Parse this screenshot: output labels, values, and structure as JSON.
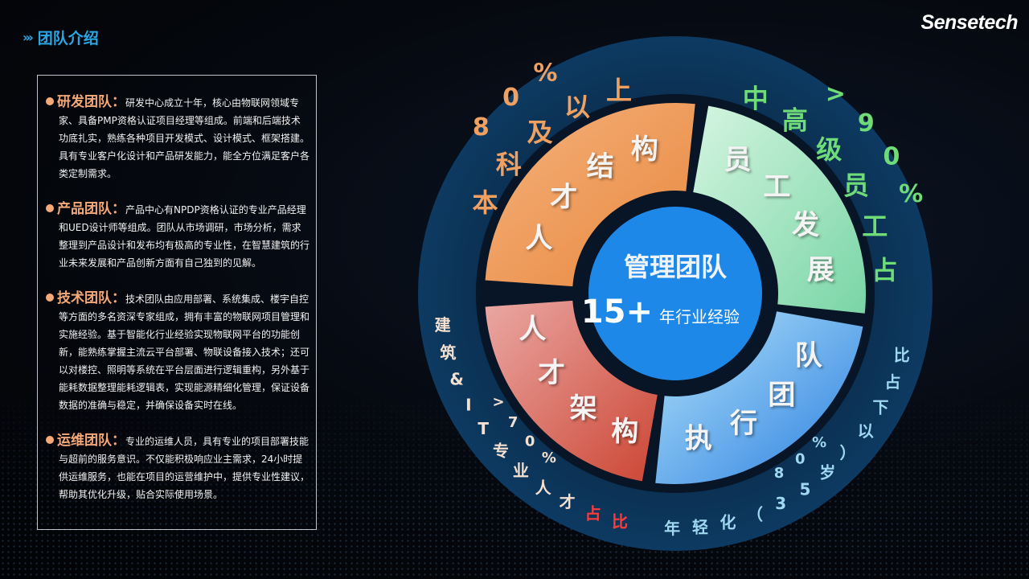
{
  "header": {
    "title": "团队介绍",
    "icon": "double-chevron-right-icon"
  },
  "logo": "Sensetech",
  "teams": [
    {
      "name": "研发团队",
      "sep": "：",
      "desc": "研发中心成立十年，核心由物联网领域专家、具备PMP资格认证项目经理等组成。前端和后端技术功底扎实，熟练各种项目开发模式、设计模式、框架搭建。具有专业客户化设计和产品研发能力，能全方位满足客户各类定制需求。"
    },
    {
      "name": "产品团队",
      "sep": "：",
      "desc": "产品中心有NPDP资格认证的专业产品经理和UED设计师等组成。团队从市场调研，市场分析，需求整理到产品设计和发布均有极高的专业性，在智慧建筑的行业未来发展和产品创新方面有自己独到的见解。"
    },
    {
      "name": "技术团队",
      "sep": "：",
      "desc": "技术团队由应用部署、系统集成、楼宇自控等方面的多名资深专家组成，拥有丰富的物联网项目管理和实施经验。基于智能化行业经验实现物联网平台的功能创新，能熟练掌握主流云平台部署、物联设备接入技术；还可以对楼控、照明等系统在平台层面进行逻辑重构，另外基于能耗数据整理能耗逻辑表，实现能源精细化管理，保证设备数据的准确与稳定，并确保设备实时在线。"
    },
    {
      "name": "运维团队",
      "sep": "：",
      "desc": "专业的运维人员，具有专业的项目部署技能与超前的服务意识。不仅能积极响应业主需求，24小时提供运维服务，也能在项目的运营维护中，提供专业性建议，帮助其优化升级，贴合实际使用场景。"
    }
  ],
  "center": {
    "title": "管理团队",
    "number": "15+",
    "suffix": "年行业经验",
    "color": "#1e88e8"
  },
  "segments": [
    {
      "label": "人才结构",
      "outer": "本科及以上",
      "percent": "80%",
      "colors": [
        "#f4b27c",
        "#e9873e"
      ],
      "text_color": "#f0a060"
    },
    {
      "label": "员工发展",
      "outer": "中高级员工占",
      "percent": ">90%",
      "colors": [
        "#d4f5e0",
        "#79d5a6"
      ],
      "text_color": "#6fdc78"
    },
    {
      "label": "执行团队",
      "outer": "年轻化（35岁）以下占比",
      "percent": "80%",
      "colors": [
        "#b2e2fa",
        "#2a7fe0"
      ],
      "text_color": "#9fd8f0"
    },
    {
      "label": "人才架构",
      "outer": "建筑&IT专业人才",
      "outer_accent": "占比",
      "percent": ">70%",
      "colors": [
        "#eaa8a4",
        "#cc4634"
      ],
      "text_color": "#f3e0d0",
      "accent_color": "#ff3b3b"
    }
  ]
}
